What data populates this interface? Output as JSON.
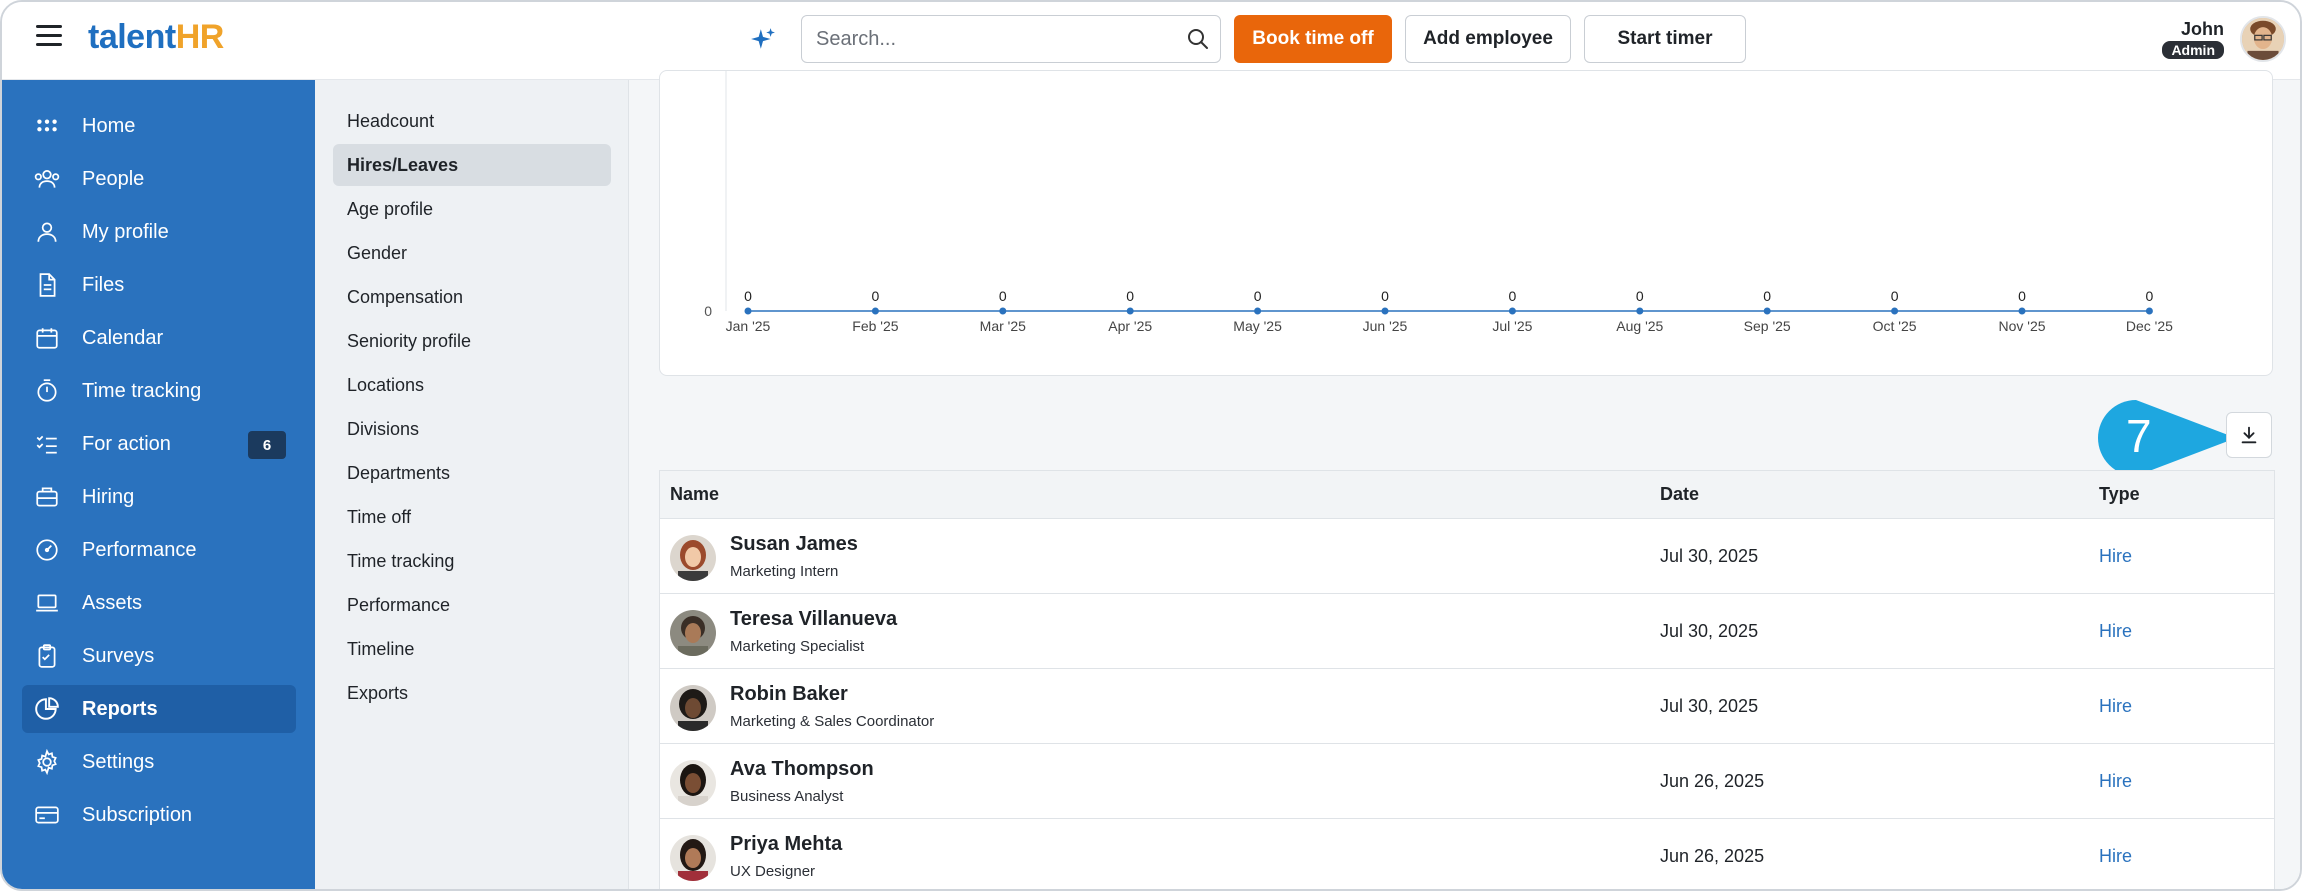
{
  "app": {
    "logo_main": "talent",
    "logo_accent": "HR"
  },
  "header": {
    "search_placeholder": "Search...",
    "book_time_off": "Book time off",
    "add_employee": "Add employee",
    "start_timer": "Start timer",
    "user_name": "John",
    "user_role": "Admin"
  },
  "colors": {
    "sidebar": "#2a72be",
    "accent_orange": "#e9660b",
    "link_blue": "#2a72be",
    "callout": "#1ea7e0"
  },
  "sidebar": {
    "items": [
      {
        "label": "Home",
        "icon": "grid-icon"
      },
      {
        "label": "People",
        "icon": "people-icon"
      },
      {
        "label": "My profile",
        "icon": "user-icon"
      },
      {
        "label": "Files",
        "icon": "file-icon"
      },
      {
        "label": "Calendar",
        "icon": "calendar-icon"
      },
      {
        "label": "Time tracking",
        "icon": "stopwatch-icon"
      },
      {
        "label": "For action",
        "icon": "checklist-icon",
        "badge": "6"
      },
      {
        "label": "Hiring",
        "icon": "briefcase-icon"
      },
      {
        "label": "Performance",
        "icon": "gauge-icon"
      },
      {
        "label": "Assets",
        "icon": "laptop-icon"
      },
      {
        "label": "Surveys",
        "icon": "clipboard-icon"
      },
      {
        "label": "Reports",
        "icon": "pie-chart-icon",
        "active": true
      },
      {
        "label": "Settings",
        "icon": "gear-icon"
      },
      {
        "label": "Subscription",
        "icon": "card-icon"
      }
    ]
  },
  "submenu": {
    "items": [
      "Headcount",
      "Hires/Leaves",
      "Age profile",
      "Gender",
      "Compensation",
      "Seniority profile",
      "Locations",
      "Divisions",
      "Departments",
      "Time off",
      "Time tracking",
      "Performance",
      "Timeline",
      "Exports"
    ],
    "active": "Hires/Leaves"
  },
  "chart_data": {
    "type": "line",
    "categories": [
      "Jan '25",
      "Feb '25",
      "Mar '25",
      "Apr '25",
      "May '25",
      "Jun '25",
      "Jul '25",
      "Aug '25",
      "Sep '25",
      "Oct '25",
      "Nov '25",
      "Dec '25"
    ],
    "values": [
      0,
      0,
      0,
      0,
      0,
      0,
      0,
      0,
      0,
      0,
      0,
      0
    ],
    "yticks": [
      "0"
    ],
    "title": "",
    "xlabel": "",
    "ylabel": ""
  },
  "callout": {
    "number": "7"
  },
  "table": {
    "headers": {
      "name": "Name",
      "date": "Date",
      "type": "Type"
    },
    "rows": [
      {
        "name": "Susan James",
        "title": "Marketing Intern",
        "date": "Jul 30, 2025",
        "type": "Hire"
      },
      {
        "name": "Teresa Villanueva",
        "title": "Marketing Specialist",
        "date": "Jul 30, 2025",
        "type": "Hire"
      },
      {
        "name": "Robin Baker",
        "title": "Marketing & Sales Coordinator",
        "date": "Jul 30, 2025",
        "type": "Hire"
      },
      {
        "name": "Ava Thompson",
        "title": "Business Analyst",
        "date": "Jun 26, 2025",
        "type": "Hire"
      },
      {
        "name": "Priya Mehta",
        "title": "UX Designer",
        "date": "Jun 26, 2025",
        "type": "Hire"
      }
    ]
  }
}
